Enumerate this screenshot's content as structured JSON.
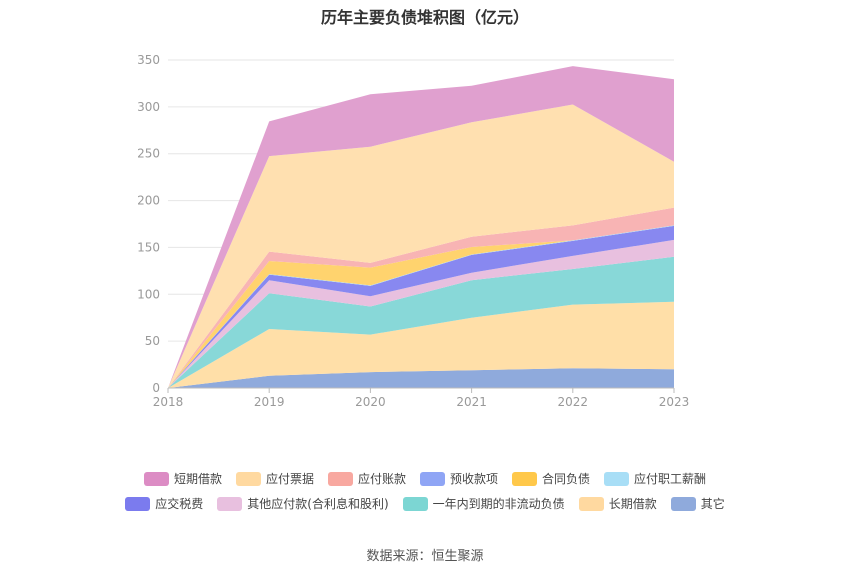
{
  "chart_data": {
    "type": "area",
    "stacked": true,
    "title": "历年主要负债堆积图（亿元）",
    "x": [
      "2018",
      "2019",
      "2020",
      "2021",
      "2022",
      "2023"
    ],
    "ylim": [
      0,
      350
    ],
    "yticks": [
      0,
      50,
      100,
      150,
      200,
      250,
      300,
      350
    ],
    "grid": true,
    "legend_position": "bottom",
    "series": [
      {
        "name": "其它",
        "color": "#8FAADC",
        "values": [
          0,
          13,
          17,
          19,
          21,
          20
        ]
      },
      {
        "name": "长期借款",
        "color": "#FFDFA8",
        "values": [
          0,
          50,
          40,
          56,
          68,
          72
        ]
      },
      {
        "name": "一年内到期的非流动负债",
        "color": "#88D8D8",
        "values": [
          0,
          38,
          30,
          40,
          38,
          48
        ]
      },
      {
        "name": "其他应付款(合利息和股利)",
        "color": "#E8C0DF",
        "values": [
          0,
          14,
          11,
          8,
          14,
          18
        ]
      },
      {
        "name": "应交税费",
        "color": "#8888F0",
        "values": [
          0,
          6,
          11,
          19,
          16,
          15
        ]
      },
      {
        "name": "应付职工薪酬",
        "color": "#A8DEF6",
        "values": [
          0,
          0.5,
          0.5,
          0.5,
          0.5,
          0.5
        ]
      },
      {
        "name": "合同负债",
        "color": "#FFD36E",
        "values": [
          0,
          14,
          19,
          8,
          0,
          0
        ]
      },
      {
        "name": "预收款项",
        "color": "#8FA5F5",
        "values": [
          0,
          0,
          0,
          0,
          0,
          0
        ]
      },
      {
        "name": "应付账款",
        "color": "#F8B4B4",
        "values": [
          0,
          10,
          5,
          11,
          16,
          19
        ]
      },
      {
        "name": "应付票据",
        "color": "#FFE0B0",
        "values": [
          0,
          102,
          124,
          122,
          129,
          49
        ]
      },
      {
        "name": "短期借款",
        "color": "#E0A0CF",
        "values": [
          0,
          37,
          56,
          39,
          41,
          88
        ]
      }
    ],
    "legend_order": [
      [
        "短期借款",
        "应付票据",
        "应付账款",
        "预收款项",
        "合同负债",
        "应付职工薪酬"
      ],
      [
        "应交税费",
        "其他应付款(合利息和股利)",
        "一年内到期的非流动负债",
        "长期借款",
        "其它"
      ]
    ],
    "legend_colors": {
      "短期借款": "#DC8CC4",
      "应付票据": "#FFD9A0",
      "应付账款": "#F8A8A0",
      "预收款项": "#8FA5F5",
      "合同负债": "#FFC84A",
      "应付职工薪酬": "#A8DEF6",
      "应交税费": "#7B7BEE",
      "其他应付款(合利息和股利)": "#E8C0DF",
      "一年内到期的非流动负债": "#7CD6D3",
      "长期借款": "#FFD9A0",
      "其它": "#8FAADC"
    }
  },
  "source": "数据来源：恒生聚源"
}
